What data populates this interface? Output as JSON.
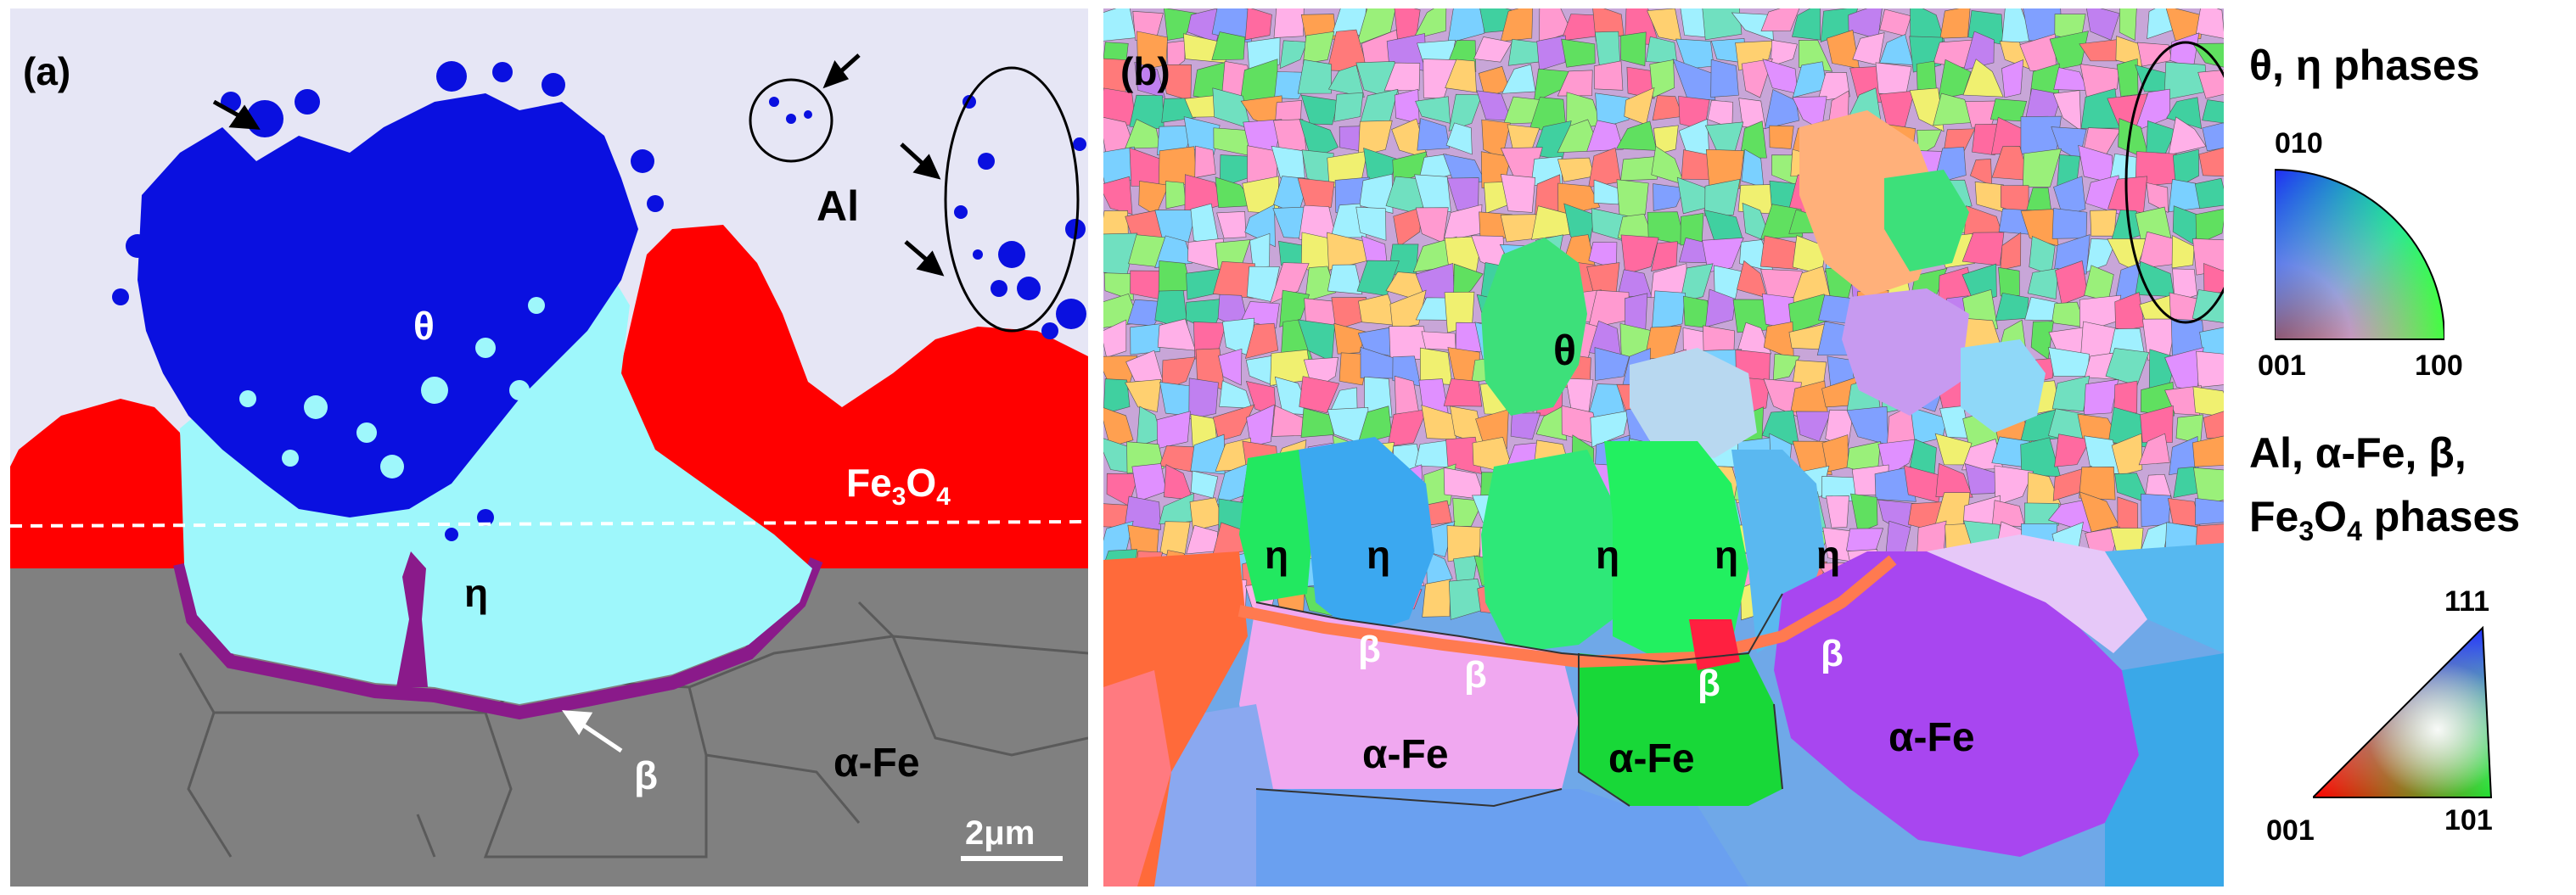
{
  "panel_a": {
    "tag": "(a)",
    "labels": {
      "al": "Al",
      "theta": "θ",
      "eta": "η",
      "fe3o4_main": "Fe",
      "fe3o4_sub": "3",
      "fe3o4_tail": "O",
      "fe3o4_sub2": "4",
      "beta": "β",
      "alpha_fe": "α-Fe",
      "scale_bar": "2μm"
    },
    "colors": {
      "al": "#e6e6f5",
      "theta": "#0a10e0",
      "eta": "#9ef7fb",
      "fe3o4": "#ff0000",
      "beta": "#8a1a8a",
      "alpha_fe": "#808080"
    }
  },
  "panel_b": {
    "tag": "(b)",
    "labels": {
      "theta": "θ",
      "eta_1": "η",
      "eta_2": "η",
      "eta_3": "η",
      "eta_4": "η",
      "eta_5": "η",
      "beta_1": "β",
      "beta_2": "β",
      "beta_3": "β",
      "beta_4": "β",
      "alpha_fe_1": "α-Fe",
      "alpha_fe_2": "α-Fe",
      "alpha_fe_3": "α-Fe"
    }
  },
  "legend": {
    "top_title": "θ, η phases",
    "top_ticks": {
      "top": "010",
      "bottom_left": "001",
      "bottom_right": "100"
    },
    "bottom_title_line1": "Al, α-Fe, β,",
    "bottom_title_line2_a": "Fe",
    "bottom_title_line2_sub": "3",
    "bottom_title_line2_b": "O",
    "bottom_title_line2_sub2": "4",
    "bottom_title_line2_c": " phases",
    "bottom_ticks": {
      "top": "111",
      "bottom_left": "001",
      "bottom_right": "101"
    }
  }
}
